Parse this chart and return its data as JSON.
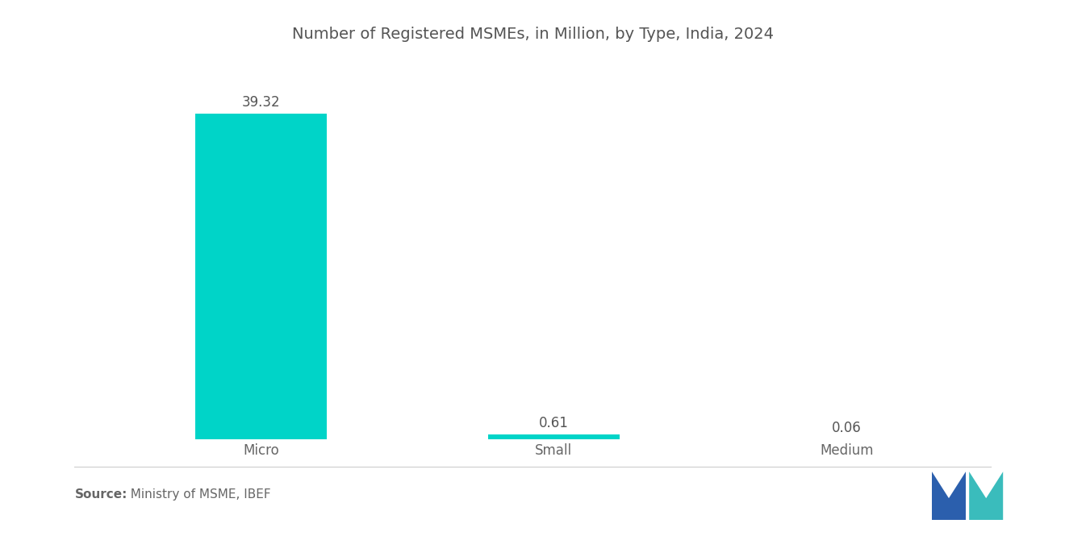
{
  "title": "Number of Registered MSMEs, in Million, by Type, India, 2024",
  "categories": [
    "Micro",
    "Small",
    "Medium"
  ],
  "values": [
    39.32,
    0.61,
    0.06
  ],
  "bar_color": "#00D4C8",
  "background_color": "#ffffff",
  "title_color": "#555555",
  "label_color": "#666666",
  "value_color": "#555555",
  "source_bold": "Source:",
  "source_normal": "  Ministry of MSME, IBEF",
  "title_fontsize": 14,
  "label_fontsize": 12,
  "value_fontsize": 12,
  "source_fontsize": 11,
  "ylim": [
    0,
    44
  ],
  "bar_width": 0.45,
  "logo_blue": "#2b5fad",
  "logo_teal": "#3abcbc"
}
